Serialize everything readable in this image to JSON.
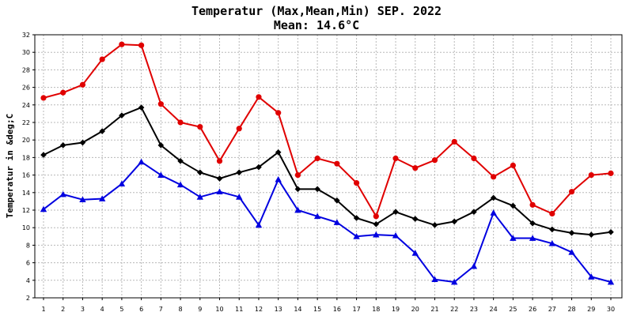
{
  "chart_data": {
    "type": "line",
    "title": "Temperatur (Max,Mean,Min) SEP. 2022",
    "subtitle": "Mean: 14.6°C",
    "xlabel": "",
    "ylabel": "Temperatur in &deg;C",
    "x": [
      1,
      2,
      3,
      4,
      5,
      6,
      7,
      8,
      9,
      10,
      11,
      12,
      13,
      14,
      15,
      16,
      17,
      18,
      19,
      20,
      21,
      22,
      23,
      24,
      25,
      26,
      27,
      28,
      29,
      30
    ],
    "ylim": [
      2,
      32
    ],
    "yticks": [
      2,
      4,
      6,
      8,
      10,
      12,
      14,
      16,
      18,
      20,
      22,
      24,
      26,
      28,
      30,
      32
    ],
    "grid": true,
    "series": [
      {
        "color": "#e00000",
        "marker": "circle",
        "values": [
          24.8,
          25.4,
          26.3,
          29.2,
          30.9,
          30.8,
          24.1,
          22.0,
          21.5,
          17.6,
          21.3,
          24.9,
          23.1,
          16.0,
          17.9,
          17.3,
          15.1,
          11.3,
          17.9,
          16.8,
          17.7,
          19.8,
          17.9,
          15.8,
          17.1,
          12.6,
          11.6,
          14.1,
          16.0,
          16.2
        ]
      },
      {
        "color": "#000000",
        "marker": "diamond",
        "values": [
          18.3,
          19.4,
          19.7,
          21.0,
          22.8,
          23.7,
          19.4,
          17.6,
          16.3,
          15.6,
          16.3,
          16.9,
          18.6,
          14.4,
          14.4,
          13.1,
          11.1,
          10.4,
          11.8,
          11.0,
          10.3,
          10.7,
          11.8,
          13.4,
          12.5,
          10.5,
          9.8,
          9.4,
          9.2,
          9.5
        ]
      },
      {
        "color": "#0000e0",
        "marker": "triangle",
        "values": [
          12.1,
          13.8,
          13.2,
          13.3,
          15.0,
          17.5,
          16.0,
          14.9,
          13.5,
          14.1,
          13.5,
          10.3,
          15.5,
          12.0,
          11.3,
          10.6,
          9.0,
          9.2,
          9.1,
          7.1,
          4.1,
          3.8,
          5.6,
          11.7,
          8.8,
          8.8,
          8.2,
          7.2,
          4.4,
          3.8
        ]
      }
    ]
  }
}
